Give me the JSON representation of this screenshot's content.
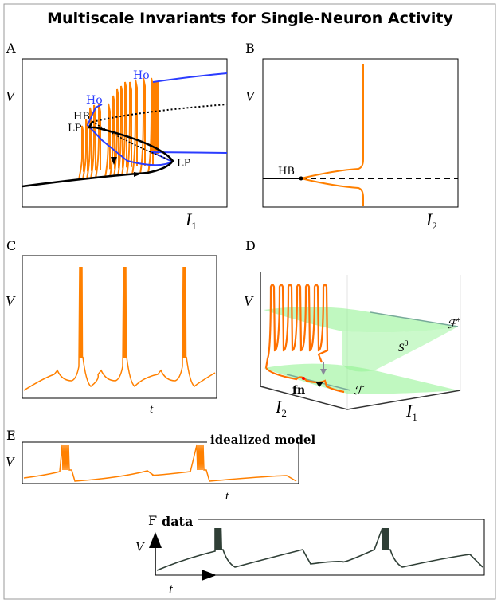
{
  "title": "Multiscale Invariants for Single-Neuron Activity",
  "colors": {
    "trace": "#ff8000",
    "branch": "#2b3cff",
    "manifold": "#8cf28c",
    "data_trace": "#2f3f36"
  },
  "panels": {
    "A": {
      "label": "A",
      "ylabel": "V",
      "xlabel": "I",
      "xlabel_sub": "1",
      "annotations": {
        "ho1": "Ho",
        "ho2": "Ho",
        "hb": "HB",
        "lp1": "LP",
        "lp2": "LP"
      }
    },
    "B": {
      "label": "B",
      "ylabel": "V",
      "xlabel": "I",
      "xlabel_sub": "2",
      "annotations": {
        "hb": "HB"
      }
    },
    "C": {
      "label": "C",
      "ylabel": "V",
      "xlabel": "t"
    },
    "D": {
      "label": "D",
      "ylabel": "V",
      "xlabel1": "I",
      "xlabel1_sub": "2",
      "xlabel2": "I",
      "xlabel2_sub": "1",
      "annotations": {
        "fplus": "ℱ",
        "fplus_sup": "+",
        "fminus": "ℱ",
        "fminus_sup": "−",
        "s0": "S",
        "s0_sup": "0",
        "fn": "fn"
      }
    },
    "E": {
      "label": "E",
      "ylabel": "V",
      "xlabel": "t",
      "caption": "idealized model"
    },
    "F": {
      "label": "F",
      "ylabel": "V",
      "xlabel": "t",
      "caption": "data"
    }
  }
}
